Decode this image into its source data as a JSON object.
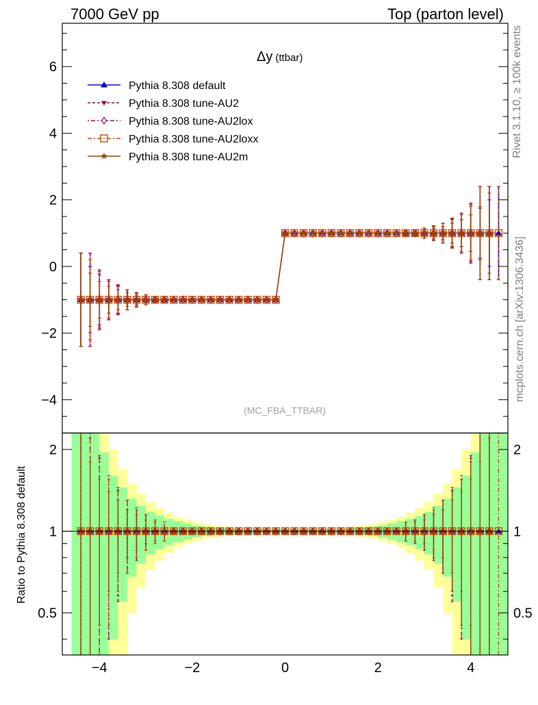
{
  "header": {
    "left": "7000 GeV pp",
    "right": "Top (parton level)"
  },
  "side_labels": {
    "rivet": "Rivet 3.1.10, ≥ 100k events",
    "mcplots": "mcplots.cern.ch [arXiv:1306.3436]"
  },
  "chart_data": [
    {
      "type": "line",
      "panel": "main",
      "title": "Δy",
      "title_suffix": "(ttbar)",
      "watermark": "(MC_FBA_TTBAR)",
      "xlim": [
        -4.8,
        4.8
      ],
      "ylim": [
        -5,
        7.3
      ],
      "x_ticks": [
        -4,
        -2,
        0,
        2,
        4
      ],
      "x_tick_labels": [
        "−4",
        "−2",
        "0",
        "2",
        "4"
      ],
      "y_ticks": [
        -4,
        -2,
        0,
        2,
        4,
        6
      ],
      "y_tick_labels": [
        "−4",
        "−2",
        "0",
        "2",
        "4",
        "6"
      ],
      "legend_position": "top-left",
      "bins": [
        -4.4,
        -4.2,
        -4.0,
        -3.8,
        -3.6,
        -3.4,
        -3.2,
        -3.0,
        -2.8,
        -2.6,
        -2.4,
        -2.2,
        -2.0,
        -1.8,
        -1.6,
        -1.4,
        -1.2,
        -1.0,
        -0.8,
        -0.6,
        -0.4,
        -0.2,
        0.0,
        0.2,
        0.4,
        0.6,
        0.8,
        1.0,
        1.2,
        1.4,
        1.6,
        1.8,
        2.0,
        2.2,
        2.4,
        2.6,
        2.8,
        3.0,
        3.2,
        3.4,
        3.6,
        3.8,
        4.0,
        4.2,
        4.4,
        4.6
      ],
      "series": [
        {
          "name": "Pythia 8.308 default",
          "color": "#0000cc",
          "marker": "triangle-up",
          "dash": "solid",
          "offset": 0.0,
          "x_range": [
            -4.4,
            4.6
          ],
          "y_neg": -1,
          "y_pos": 1,
          "err_left": [
            1.4,
            1.0,
            0.75,
            0.55,
            0.4,
            0.3,
            0.2,
            0.15,
            0.1,
            0.08
          ],
          "err_right": [
            1.4,
            1.0,
            0.75,
            0.55,
            0.4,
            0.3,
            0.2,
            0.15,
            0.1,
            0.08
          ]
        },
        {
          "name": "Pythia 8.308 tune-AU2",
          "color": "#990033",
          "marker": "triangle-down",
          "dash": "4,3",
          "offset": 0.05,
          "x_range": [
            -4.4,
            4.4
          ],
          "y_neg": -1,
          "y_pos": 1,
          "err_left": [
            1.4,
            1.4,
            0.9,
            0.6,
            0.45,
            0.3,
            0.22,
            0.15,
            0.1,
            0.08
          ],
          "err_right": [
            1.4,
            1.4,
            0.9,
            0.6,
            0.45,
            0.3,
            0.22,
            0.15,
            0.1,
            0.08
          ]
        },
        {
          "name": "Pythia 8.308 tune-AU2lox",
          "color": "#aa0055",
          "marker": "diamond",
          "dash": "2,3,6,3",
          "offset": 0.1,
          "x_range": [
            -4.4,
            4.4
          ],
          "y_neg": -1,
          "y_pos": 1,
          "err_left": [
            1.4,
            1.4,
            0.85,
            0.6,
            0.42,
            0.3,
            0.2,
            0.15,
            0.1,
            0.08
          ],
          "err_right": [
            1.4,
            1.4,
            0.85,
            0.6,
            0.42,
            0.3,
            0.2,
            0.15,
            0.1,
            0.08
          ]
        },
        {
          "name": "Pythia 8.308 tune-AU2loxx",
          "color": "#cc4400",
          "marker": "square",
          "dash": "6,3,2,3",
          "offset": 0.15,
          "x_range": [
            -4.4,
            4.6
          ],
          "y_neg": -1,
          "y_pos": 1,
          "err_left": [
            1.4,
            1.2,
            0.8,
            0.55,
            0.4,
            0.3,
            0.2,
            0.15,
            0.1,
            0.08
          ],
          "err_right": [
            1.4,
            1.2,
            0.8,
            0.55,
            0.4,
            0.3,
            0.2,
            0.15,
            0.1,
            0.08
          ]
        },
        {
          "name": "Pythia 8.308 tune-AU2m",
          "color": "#994400",
          "marker": "star",
          "dash": "solid",
          "offset": 0.2,
          "x_range": [
            -4.6,
            4.4
          ],
          "y_neg": -1,
          "y_pos": 1,
          "err_left": [
            1.4,
            1.4,
            0.8,
            0.55,
            0.4,
            0.3,
            0.2,
            0.15,
            0.1,
            0.08
          ],
          "err_right": [
            1.4,
            1.4,
            0.8,
            0.55,
            0.4,
            0.3,
            0.2,
            0.15,
            0.1,
            0.08
          ]
        }
      ]
    },
    {
      "type": "line",
      "panel": "ratio",
      "ylabel": "Ratio to Pythia 8.308 default",
      "xlim": [
        -4.8,
        4.8
      ],
      "ylim": [
        0.35,
        2.3
      ],
      "y_ticks": [
        0.5,
        1,
        2
      ],
      "y_tick_labels": [
        "0.5",
        "1",
        "2"
      ],
      "x_ticks": [
        -4,
        -2,
        0,
        2,
        4
      ],
      "x_tick_labels": [
        "−4",
        "−2",
        "0",
        "2",
        "4"
      ],
      "band_edges": [
        -4.6,
        -4.4,
        -4.2,
        -4.0,
        -3.8,
        -3.6,
        -3.4,
        -3.2,
        -3.0,
        -2.8,
        -2.6,
        -2.4,
        -2.2,
        -2.0,
        -1.8,
        -1.6,
        -1.4,
        -1.2,
        -1.0,
        1.0,
        1.2,
        1.4,
        1.6,
        1.8,
        2.0,
        2.2,
        2.4,
        2.6,
        2.8,
        3.0,
        3.2,
        3.4,
        3.6,
        3.8,
        4.0,
        4.2,
        4.4,
        4.6,
        4.8
      ],
      "yellow_half": [
        2.0,
        2.0,
        2.0,
        1.6,
        1.0,
        0.7,
        0.5,
        0.38,
        0.28,
        0.22,
        0.17,
        0.13,
        0.1,
        0.08,
        0.06,
        0.05,
        0.04,
        0.03,
        0.02,
        0.02,
        0.03,
        0.04,
        0.05,
        0.06,
        0.08,
        0.1,
        0.13,
        0.17,
        0.22,
        0.28,
        0.38,
        0.5,
        0.7,
        1.0,
        1.6,
        2.0,
        2.0,
        2.0
      ],
      "green_half": [
        2.0,
        2.0,
        2.0,
        0.95,
        0.6,
        0.45,
        0.32,
        0.24,
        0.18,
        0.14,
        0.11,
        0.09,
        0.07,
        0.05,
        0.04,
        0.03,
        0.025,
        0.02,
        0.015,
        0.015,
        0.02,
        0.025,
        0.03,
        0.04,
        0.05,
        0.07,
        0.09,
        0.11,
        0.14,
        0.18,
        0.24,
        0.32,
        0.45,
        0.6,
        0.95,
        2.0,
        2.0,
        2.0
      ],
      "band_colors": {
        "yellow": "#ffff99",
        "green": "#99ff99"
      }
    }
  ]
}
